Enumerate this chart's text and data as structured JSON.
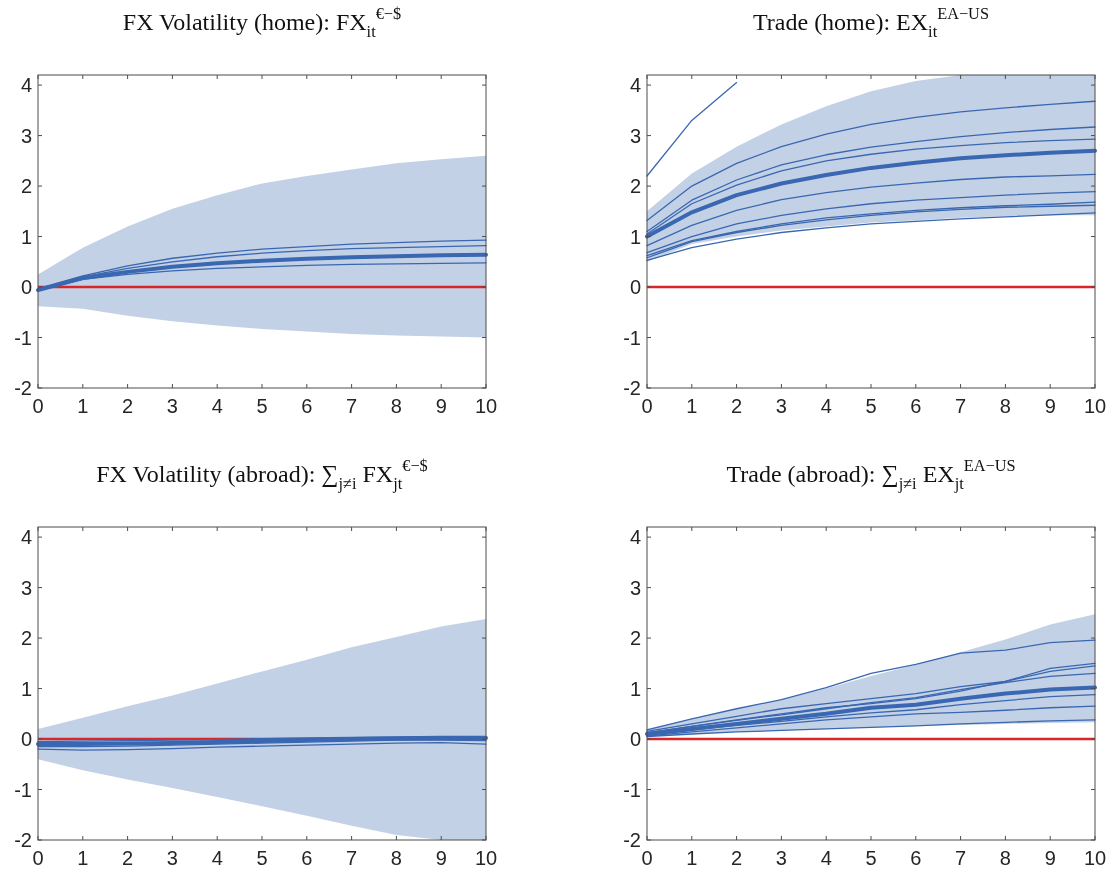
{
  "chart_data": [
    {
      "type": "line",
      "title": "FX Volatility (home): FX$_{it}$$^{€−$}$",
      "x": [
        0,
        1,
        2,
        3,
        4,
        5,
        6,
        7,
        8,
        9,
        10
      ],
      "xlim": [
        0,
        10
      ],
      "xticks": [
        0,
        1,
        2,
        3,
        4,
        5,
        6,
        7,
        8,
        9,
        10
      ],
      "ylim": [
        -2,
        4.2
      ],
      "yticks": [
        -2,
        -1,
        0,
        1,
        2,
        3,
        4
      ],
      "grid": false,
      "marker": "none",
      "line_style": "solid",
      "ref_lines": [
        {
          "axis": "y",
          "value": 0,
          "color": "#d9262b"
        }
      ],
      "series": [
        {
          "color": "#3a67b1",
          "values": [
            -0.06,
            0.18,
            0.3,
            0.4,
            0.47,
            0.52,
            0.56,
            0.59,
            0.61,
            0.63,
            0.64
          ],
          "lower": [
            -0.38,
            -0.43,
            -0.57,
            -0.68,
            -0.76,
            -0.83,
            -0.88,
            -0.93,
            -0.96,
            -0.98,
            -1.0
          ],
          "upper": [
            0.25,
            0.78,
            1.2,
            1.55,
            1.82,
            2.05,
            2.2,
            2.33,
            2.45,
            2.53,
            2.6
          ]
        },
        {
          "color": "#3a67b1",
          "values": [
            -0.03,
            0.22,
            0.42,
            0.57,
            0.67,
            0.75,
            0.8,
            0.85,
            0.88,
            0.91,
            0.93
          ]
        },
        {
          "color": "#3a67b1",
          "values": [
            -0.04,
            0.2,
            0.37,
            0.5,
            0.6,
            0.67,
            0.72,
            0.76,
            0.78,
            0.8,
            0.82
          ]
        },
        {
          "color": "#3a67b1",
          "values": [
            -0.07,
            0.15,
            0.25,
            0.32,
            0.37,
            0.4,
            0.43,
            0.45,
            0.46,
            0.47,
            0.48
          ]
        }
      ]
    },
    {
      "type": "line",
      "title": "Trade (home): EX$_{it}$$^{EA−US}$",
      "x": [
        0,
        1,
        2,
        3,
        4,
        5,
        6,
        7,
        8,
        9,
        10
      ],
      "xlim": [
        0,
        10
      ],
      "xticks": [
        0,
        1,
        2,
        3,
        4,
        5,
        6,
        7,
        8,
        9,
        10
      ],
      "ylim": [
        -2,
        4.2
      ],
      "yticks": [
        -2,
        -1,
        0,
        1,
        2,
        3,
        4
      ],
      "grid": false,
      "marker": "none",
      "line_style": "solid",
      "ref_lines": [
        {
          "axis": "y",
          "value": 0,
          "color": "#d9262b"
        }
      ],
      "series": [
        {
          "color": "#3a67b1",
          "values": [
            1.0,
            1.48,
            1.82,
            2.05,
            2.22,
            2.36,
            2.46,
            2.55,
            2.61,
            2.66,
            2.7
          ],
          "lower": [
            0.5,
            0.85,
            1.0,
            1.12,
            1.2,
            1.28,
            1.32,
            1.37,
            1.4,
            1.42,
            1.42
          ],
          "upper": [
            1.5,
            2.25,
            2.78,
            3.22,
            3.58,
            3.88,
            4.08,
            4.2,
            4.2,
            4.2,
            4.2
          ]
        },
        {
          "color": "#3a67b1",
          "values": [
            2.2,
            3.3,
            4.05,
            null,
            null,
            null,
            null,
            null,
            null,
            null,
            null
          ]
        },
        {
          "color": "#3a67b1",
          "values": [
            1.32,
            2.0,
            2.45,
            2.78,
            3.03,
            3.22,
            3.36,
            3.47,
            3.55,
            3.62,
            3.68
          ]
        },
        {
          "color": "#3a67b1",
          "values": [
            1.1,
            1.72,
            2.12,
            2.42,
            2.62,
            2.77,
            2.88,
            2.98,
            3.06,
            3.12,
            3.17
          ]
        },
        {
          "color": "#3a67b1",
          "values": [
            1.05,
            1.65,
            2.02,
            2.3,
            2.5,
            2.63,
            2.73,
            2.8,
            2.86,
            2.9,
            2.93
          ]
        },
        {
          "color": "#3a67b1",
          "values": [
            0.82,
            1.22,
            1.52,
            1.73,
            1.87,
            1.98,
            2.06,
            2.13,
            2.18,
            2.2,
            2.23
          ]
        },
        {
          "color": "#3a67b1",
          "values": [
            0.68,
            1.0,
            1.25,
            1.42,
            1.55,
            1.65,
            1.72,
            1.77,
            1.82,
            1.86,
            1.89
          ]
        },
        {
          "color": "#3a67b1",
          "values": [
            0.62,
            0.92,
            1.1,
            1.25,
            1.37,
            1.45,
            1.52,
            1.57,
            1.61,
            1.64,
            1.68
          ]
        },
        {
          "color": "#3a67b1",
          "values": [
            0.58,
            0.9,
            1.08,
            1.22,
            1.33,
            1.42,
            1.49,
            1.54,
            1.58,
            1.6,
            1.62
          ]
        },
        {
          "color": "#3a67b1",
          "values": [
            0.53,
            0.78,
            0.95,
            1.08,
            1.17,
            1.25,
            1.3,
            1.35,
            1.39,
            1.43,
            1.47
          ]
        }
      ]
    },
    {
      "type": "line",
      "title": "FX Volatility (abroad): ∑$_{j≠i}$ FX$_{jt}$$^{€−$}$",
      "x": [
        0,
        1,
        2,
        3,
        4,
        5,
        6,
        7,
        8,
        9,
        10
      ],
      "xlim": [
        0,
        10
      ],
      "xticks": [
        0,
        1,
        2,
        3,
        4,
        5,
        6,
        7,
        8,
        9,
        10
      ],
      "ylim": [
        -2,
        4.2
      ],
      "yticks": [
        -2,
        -1,
        0,
        1,
        2,
        3,
        4
      ],
      "grid": false,
      "marker": "none",
      "line_style": "solid",
      "ref_lines": [
        {
          "axis": "y",
          "value": 0,
          "color": "#d9262b"
        }
      ],
      "series": [
        {
          "color": "#3a67b1",
          "values": [
            -0.1,
            -0.1,
            -0.09,
            -0.08,
            -0.06,
            -0.04,
            -0.02,
            0,
            0.01,
            0.02,
            0.02
          ],
          "lower": [
            -0.4,
            -0.62,
            -0.8,
            -0.97,
            -1.15,
            -1.33,
            -1.52,
            -1.72,
            -1.9,
            -2.0,
            -2.0
          ],
          "upper": [
            0.2,
            0.42,
            0.65,
            0.86,
            1.1,
            1.34,
            1.57,
            1.82,
            2.02,
            2.23,
            2.38
          ]
        },
        {
          "color": "#3a67b1",
          "values": [
            -0.15,
            -0.15,
            -0.14,
            -0.12,
            -0.1,
            -0.08,
            -0.06,
            -0.04,
            -0.02,
            -0.02,
            -0.03
          ]
        },
        {
          "color": "#3a67b1",
          "values": [
            -0.2,
            -0.22,
            -0.21,
            -0.19,
            -0.16,
            -0.14,
            -0.12,
            -0.1,
            -0.08,
            -0.07,
            -0.1
          ]
        },
        {
          "color": "#3a67b1",
          "values": [
            -0.05,
            -0.04,
            -0.03,
            -0.02,
            -0.01,
            0.01,
            0.02,
            0.03,
            0.04,
            0.05,
            0.05
          ]
        }
      ]
    },
    {
      "type": "line",
      "title": "Trade (abroad): ∑$_{j≠i}$ EX$_{jt}$$^{EA−US}$",
      "x": [
        0,
        1,
        2,
        3,
        4,
        5,
        6,
        7,
        8,
        9,
        10
      ],
      "xlim": [
        0,
        10
      ],
      "xticks": [
        0,
        1,
        2,
        3,
        4,
        5,
        6,
        7,
        8,
        9,
        10
      ],
      "ylim": [
        -2,
        4.2
      ],
      "yticks": [
        -2,
        -1,
        0,
        1,
        2,
        3,
        4
      ],
      "grid": false,
      "marker": "none",
      "line_style": "solid",
      "ref_lines": [
        {
          "axis": "y",
          "value": 0,
          "color": "#d9262b"
        }
      ],
      "series": [
        {
          "color": "#3a67b1",
          "values": [
            0.1,
            0.2,
            0.3,
            0.4,
            0.5,
            0.62,
            0.68,
            0.8,
            0.9,
            0.98,
            1.02
          ],
          "lower": [
            0.05,
            0.1,
            0.14,
            0.17,
            0.2,
            0.23,
            0.26,
            0.28,
            0.3,
            0.32,
            0.33
          ],
          "upper": [
            0.2,
            0.4,
            0.6,
            0.78,
            1.0,
            1.25,
            1.47,
            1.72,
            1.97,
            2.27,
            2.47
          ]
        },
        {
          "color": "#3a67b1",
          "values": [
            0.18,
            0.4,
            0.6,
            0.78,
            1.02,
            1.3,
            1.48,
            1.7,
            1.76,
            1.91,
            1.96
          ]
        },
        {
          "color": "#3a67b1",
          "values": [
            0.15,
            0.3,
            0.45,
            0.6,
            0.7,
            0.8,
            0.9,
            1.04,
            1.14,
            1.4,
            1.5
          ]
        },
        {
          "color": "#3a67b1",
          "values": [
            0.12,
            0.25,
            0.38,
            0.5,
            0.62,
            0.7,
            0.8,
            0.95,
            1.14,
            1.34,
            1.45
          ]
        },
        {
          "color": "#3a67b1",
          "values": [
            0.12,
            0.25,
            0.37,
            0.48,
            0.6,
            0.72,
            0.82,
            0.98,
            1.12,
            1.24,
            1.3
          ]
        },
        {
          "color": "#3a67b1",
          "values": [
            0.08,
            0.18,
            0.27,
            0.35,
            0.44,
            0.52,
            0.58,
            0.68,
            0.76,
            0.84,
            0.88
          ]
        },
        {
          "color": "#3a67b1",
          "values": [
            0.06,
            0.14,
            0.22,
            0.3,
            0.38,
            0.44,
            0.5,
            0.53,
            0.57,
            0.62,
            0.65
          ]
        },
        {
          "color": "#3a67b1",
          "values": [
            0.05,
            0.1,
            0.14,
            0.17,
            0.2,
            0.23,
            0.26,
            0.3,
            0.33,
            0.36,
            0.38
          ]
        }
      ]
    }
  ]
}
